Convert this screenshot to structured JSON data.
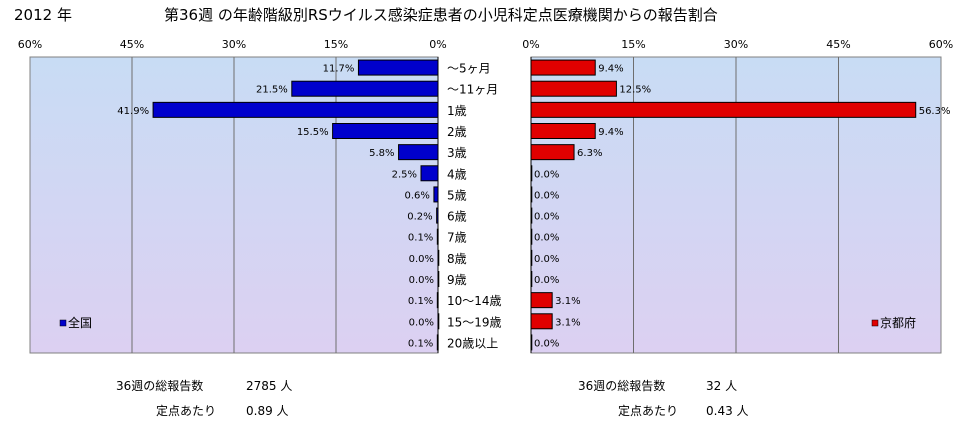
{
  "header": {
    "year": "2012 年",
    "title": "第36週 の年齢階級別RSウイルス感染症患者の小児科定点医療機関からの報告割合"
  },
  "chart_data": [
    {
      "type": "bar",
      "orientation": "horizontal",
      "direction": "reversed",
      "categories": [
        "〜5ヶ月",
        "〜11ヶ月",
        "1歳",
        "2歳",
        "3歳",
        "4歳",
        "5歳",
        "6歳",
        "7歳",
        "8歳",
        "9歳",
        "10〜14歳",
        "15〜19歳",
        "20歳以上"
      ],
      "series": [
        {
          "name": "全国",
          "values": [
            11.7,
            21.5,
            41.9,
            15.5,
            5.8,
            2.5,
            0.6,
            0.2,
            0.1,
            0.0,
            0.0,
            0.1,
            0.0,
            0.1
          ]
        }
      ],
      "value_labels": [
        "11.7%",
        "21.5%",
        "41.9%",
        "15.5%",
        "5.8%",
        "2.5%",
        "0.6%",
        "0.2%",
        "0.1%",
        "0.0%",
        "0.0%",
        "0.1%",
        "0.0%",
        "0.1%"
      ],
      "xlim": [
        0,
        60
      ],
      "ticks": [
        "60%",
        "45%",
        "30%",
        "15%",
        "0%"
      ],
      "tick_values": [
        60,
        45,
        30,
        15,
        0
      ],
      "color": "#0000cc",
      "grid": "vertical",
      "legend_position": "bottom-left"
    },
    {
      "type": "bar",
      "orientation": "horizontal",
      "categories": [
        "〜5ヶ月",
        "〜11ヶ月",
        "1歳",
        "2歳",
        "3歳",
        "4歳",
        "5歳",
        "6歳",
        "7歳",
        "8歳",
        "9歳",
        "10〜14歳",
        "15〜19歳",
        "20歳以上"
      ],
      "series": [
        {
          "name": "京都府",
          "values": [
            9.4,
            12.5,
            56.3,
            9.4,
            6.3,
            0.0,
            0.0,
            0.0,
            0.0,
            0.0,
            0.0,
            3.1,
            3.1,
            0.0
          ]
        }
      ],
      "value_labels": [
        "9.4%",
        "12.5%",
        "56.3%",
        "9.4%",
        "6.3%",
        "0.0%",
        "0.0%",
        "0.0%",
        "0.0%",
        "0.0%",
        "0.0%",
        "3.1%",
        "3.1%",
        "0.0%"
      ],
      "xlim": [
        0,
        60
      ],
      "ticks": [
        "0%",
        "15%",
        "30%",
        "45%",
        "60%"
      ],
      "tick_values": [
        0,
        15,
        30,
        45,
        60
      ],
      "color": "#e00000",
      "grid": "vertical",
      "legend_position": "bottom-right"
    }
  ],
  "stats": {
    "national": {
      "total_label": "36週の総報告数",
      "total_value": "2785 人",
      "per_label": "定点あたり",
      "per_value": "0.89 人"
    },
    "kyoto": {
      "total_label": "36週の総報告数",
      "total_value": "32 人",
      "per_label": "定点あたり",
      "per_value": "0.43 人"
    }
  }
}
